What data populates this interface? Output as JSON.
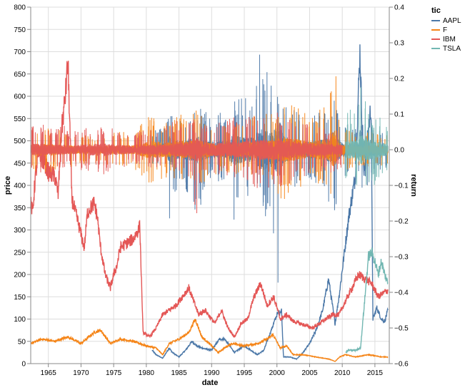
{
  "chart_data": {
    "type": "line",
    "xlabel": "date",
    "ylabel_left": "price",
    "ylabel_right": "return",
    "x_range": [
      1962.3,
      2017.2
    ],
    "x_ticks": [
      "1965",
      "1970",
      "1975",
      "1980",
      "1985",
      "1990",
      "1995",
      "2000",
      "2005",
      "2010",
      "2015"
    ],
    "ylim_left": [
      0,
      800
    ],
    "y_ticks_left": [
      "0",
      "50",
      "100",
      "150",
      "200",
      "250",
      "300",
      "350",
      "400",
      "450",
      "500",
      "550",
      "600",
      "650",
      "700",
      "750",
      "800"
    ],
    "ylim_right": [
      -0.6,
      0.4
    ],
    "y_ticks_right": [
      "−0.6",
      "−0.5",
      "−0.4",
      "−0.3",
      "−0.2",
      "−0.1",
      "0.0",
      "0.1",
      "0.2",
      "0.3",
      "0.4"
    ],
    "grid": true,
    "legend": {
      "title": "tic",
      "placement": "top-right",
      "entries": [
        "AAPL",
        "F",
        "IBM",
        "TSLA"
      ]
    },
    "colors": {
      "AAPL": "#4c78a8",
      "F": "#f58518",
      "IBM": "#e45756",
      "TSLA": "#72b7b2"
    },
    "series": [
      {
        "name": "AAPL",
        "price": {
          "x": [
            1980.9,
            1981.5,
            1982.5,
            1983.5,
            1984.0,
            1985.0,
            1986.0,
            1987.0,
            1987.7,
            1988.5,
            1990.0,
            1991.2,
            1992.0,
            1993.5,
            1995.0,
            1996.0,
            1997.0,
            1998.0,
            1999.0,
            2000.0,
            2000.7,
            2001.0,
            2002.0,
            2003.0,
            2004.0,
            2005.0,
            2006.0,
            2007.0,
            2007.9,
            2008.9,
            2009.5,
            2010.0,
            2011.0,
            2012.0,
            2012.7,
            2013.3,
            2014.0,
            2014.4,
            2014.7,
            2015.3,
            2016.0,
            2016.5,
            2017.0
          ],
          "y": [
            30,
            20,
            12,
            35,
            25,
            15,
            30,
            50,
            40,
            35,
            30,
            55,
            55,
            25,
            40,
            30,
            20,
            30,
            70,
            110,
            120,
            15,
            15,
            10,
            25,
            45,
            75,
            120,
            190,
            90,
            150,
            210,
            330,
            420,
            700,
            420,
            520,
            580,
            100,
            125,
            100,
            95,
            120
          ]
        },
        "return": {
          "x": [
            1980.9,
            1983.0,
            1983.8,
            1984.5,
            1985.5,
            1987.8,
            1990.0,
            1992.5,
            1993.4,
            1995.0,
            1996.5,
            1997.2,
            1997.8,
            1999.0,
            2000.7,
            2001.0,
            2002.0,
            2004.0,
            2006.0,
            2008.0,
            2008.8,
            2010.0,
            2012.0,
            2013.1,
            2015.0,
            2017.0
          ],
          "lo": [
            -0.04,
            -0.08,
            -0.25,
            -0.12,
            -0.1,
            -0.18,
            -0.08,
            -0.1,
            -0.23,
            -0.12,
            -0.16,
            -0.1,
            -0.2,
            -0.18,
            -0.52,
            -0.2,
            -0.12,
            -0.08,
            -0.1,
            -0.15,
            -0.18,
            -0.08,
            -0.06,
            -0.12,
            -0.07,
            -0.05
          ],
          "hi": [
            0.05,
            0.08,
            0.12,
            0.11,
            0.1,
            0.12,
            0.1,
            0.11,
            0.14,
            0.15,
            0.12,
            0.33,
            0.28,
            0.2,
            0.14,
            0.13,
            0.12,
            0.1,
            0.1,
            0.12,
            0.14,
            0.08,
            0.06,
            0.08,
            0.06,
            0.05
          ]
        }
      },
      {
        "name": "F",
        "price": {
          "x": [
            1962.3,
            1964.0,
            1966.0,
            1968.0,
            1970.0,
            1972.0,
            1973.0,
            1974.5,
            1976.0,
            1978.0,
            1980.0,
            1981.5,
            1982.5,
            1983.5,
            1985.0,
            1986.5,
            1987.5,
            1988.5,
            1990.0,
            1991.0,
            1993.0,
            1995.0,
            1997.0,
            1998.5,
            1999.4,
            2000.5,
            2001.5,
            2002.5,
            2004.0,
            2006.0,
            2008.0,
            2008.9,
            2009.6,
            2010.5,
            2012.0,
            2014.0,
            2016.0,
            2017.0
          ],
          "y": [
            45,
            55,
            50,
            60,
            45,
            70,
            75,
            45,
            55,
            50,
            40,
            35,
            20,
            45,
            55,
            70,
            100,
            60,
            40,
            25,
            45,
            40,
            45,
            55,
            65,
            35,
            40,
            20,
            20,
            15,
            10,
            5,
            15,
            20,
            15,
            20,
            15,
            15
          ]
        },
        "return": {
          "x": [
            1962.3,
            1964.0,
            1968.0,
            1972.0,
            1975.0,
            1978.0,
            1980.5,
            1983.0,
            1987.8,
            1990.0,
            1993.0,
            1997.0,
            1999.5,
            2001.0,
            2003.0,
            2005.0,
            2006.5,
            2008.0,
            2008.9,
            2009.3,
            2010.0,
            2012.0,
            2015.0,
            2017.0
          ],
          "lo": [
            -0.06,
            -0.07,
            -0.05,
            -0.04,
            -0.05,
            -0.05,
            -0.1,
            -0.08,
            -0.1,
            -0.08,
            -0.07,
            -0.08,
            -0.1,
            -0.16,
            -0.12,
            -0.08,
            -0.1,
            -0.12,
            -0.18,
            -0.1,
            -0.06,
            -0.05,
            -0.05,
            -0.04
          ],
          "hi": [
            0.06,
            0.07,
            0.05,
            0.04,
            0.05,
            0.05,
            0.1,
            0.08,
            0.12,
            0.07,
            0.07,
            0.11,
            0.12,
            0.14,
            0.12,
            0.1,
            0.12,
            0.14,
            0.3,
            0.1,
            0.06,
            0.05,
            0.05,
            0.04
          ]
        }
      },
      {
        "name": "IBM",
        "price": {
          "x": [
            1962.3,
            1962.6,
            1963.0,
            1963.5,
            1964.5,
            1965.0,
            1966.0,
            1966.5,
            1967.0,
            1967.6,
            1968.0,
            1968.6,
            1969.5,
            1970.5,
            1971.0,
            1972.0,
            1972.5,
            1973.0,
            1973.7,
            1974.5,
            1975.0,
            1975.5,
            1976.0,
            1977.0,
            1978.0,
            1978.8,
            1979.0,
            1979.5,
            1980.5,
            1981.5,
            1982.5,
            1983.5,
            1984.5,
            1985.5,
            1986.5,
            1987.5,
            1988.0,
            1989.0,
            1990.5,
            1991.5,
            1992.5,
            1993.5,
            1994.5,
            1995.5,
            1996.5,
            1997.5,
            1998.5,
            1999.5,
            2000.5,
            2001.5,
            2002.5,
            2003.5,
            2004.5,
            2005.5,
            2006.5,
            2007.5,
            2008.5,
            2009.5,
            2010.5,
            2011.5,
            2012.5,
            2013.5,
            2014.5,
            2015.5,
            2016.5,
            2017.0
          ],
          "y": [
            360,
            340,
            420,
            470,
            450,
            430,
            420,
            380,
            520,
            600,
            680,
            370,
            320,
            260,
            340,
            360,
            330,
            260,
            200,
            170,
            200,
            220,
            260,
            270,
            280,
            300,
            310,
            70,
            60,
            80,
            110,
            120,
            130,
            150,
            170,
            130,
            110,
            120,
            90,
            120,
            80,
            60,
            90,
            100,
            150,
            180,
            130,
            150,
            100,
            110,
            95,
            90,
            85,
            80,
            90,
            100,
            110,
            110,
            140,
            170,
            200,
            190,
            180,
            150,
            160,
            165
          ]
        },
        "return": {
          "x": [
            1962.3,
            1963.5,
            1965.0,
            1967.5,
            1968.0,
            1970.0,
            1973.5,
            1975.0,
            1978.0,
            1980.0,
            1983.0,
            1987.0,
            1987.8,
            1988.5,
            1991.0,
            1993.0,
            1996.0,
            1998.5,
            2000.0,
            2002.0,
            2004.5,
            2007.0,
            2010.0
          ],
          "lo": [
            -0.05,
            -0.07,
            -0.05,
            -0.05,
            -0.04,
            -0.06,
            -0.07,
            -0.06,
            -0.04,
            -0.05,
            -0.05,
            -0.08,
            -0.24,
            -0.06,
            -0.07,
            -0.08,
            -0.1,
            -0.12,
            -0.12,
            -0.1,
            -0.08,
            -0.07,
            -0.06
          ],
          "hi": [
            0.07,
            0.08,
            0.06,
            0.07,
            0.05,
            0.06,
            0.07,
            0.06,
            0.05,
            0.06,
            0.07,
            0.1,
            0.06,
            0.07,
            0.08,
            0.09,
            0.1,
            0.12,
            0.11,
            0.09,
            0.08,
            0.07,
            0.06
          ]
        }
      },
      {
        "name": "TSLA",
        "price": {
          "x": [
            2010.5,
            2011.0,
            2012.0,
            2012.8,
            2013.3,
            2013.6,
            2014.0,
            2014.5,
            2015.0,
            2015.5,
            2016.0,
            2016.5,
            2017.0
          ],
          "y": [
            25,
            30,
            30,
            35,
            120,
            170,
            240,
            250,
            230,
            200,
            230,
            200,
            180
          ]
        },
        "return": {
          "x": [
            2010.5,
            2011.0,
            2012.0,
            2013.0,
            2013.5,
            2014.0,
            2015.0,
            2016.0,
            2017.0
          ],
          "lo": [
            -0.12,
            -0.08,
            -0.09,
            -0.15,
            -0.12,
            -0.12,
            -0.1,
            -0.08,
            -0.06
          ],
          "hi": [
            0.08,
            0.12,
            0.1,
            0.2,
            0.18,
            0.12,
            0.09,
            0.1,
            0.06
          ]
        }
      }
    ]
  }
}
